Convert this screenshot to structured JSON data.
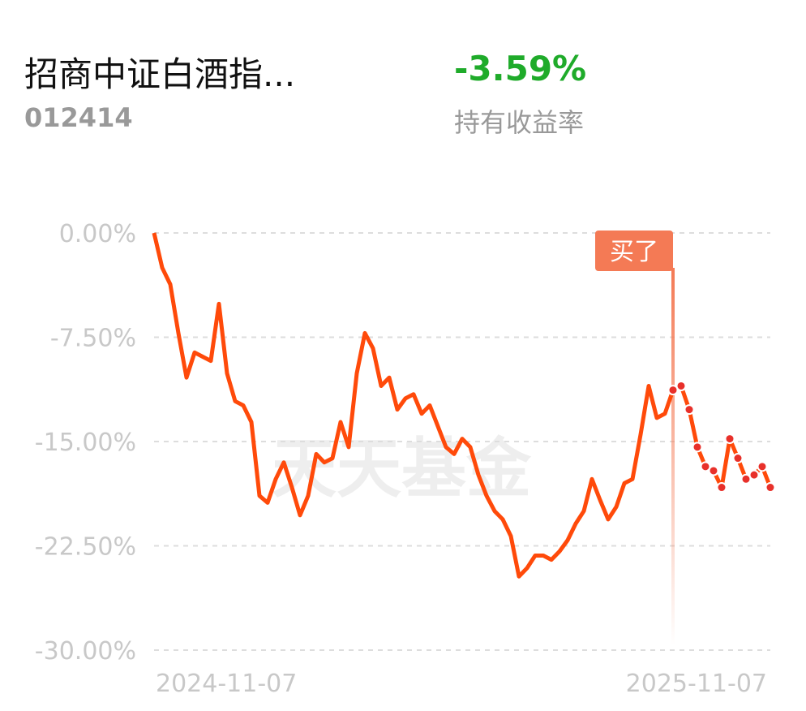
{
  "header": {
    "fund_name": "招商中证白酒指...",
    "code": "012414",
    "return_value": "-3.59%",
    "return_label": "持有收益率"
  },
  "chart_data": {
    "type": "line",
    "watermark": "天天基金",
    "annotation": "买了",
    "buy_index": 64,
    "color": "#ff4a0a",
    "marker_color": "#e8302a",
    "grid": true,
    "categories": [
      "2024-11-07",
      null,
      null,
      null,
      null,
      null,
      null,
      null,
      null,
      null,
      null,
      null,
      null,
      null,
      null,
      null,
      null,
      null,
      null,
      null,
      null,
      null,
      null,
      null,
      null,
      null,
      null,
      null,
      null,
      null,
      null,
      null,
      null,
      null,
      null,
      null,
      null,
      null,
      null,
      null,
      null,
      null,
      null,
      null,
      null,
      null,
      null,
      null,
      null,
      null,
      null,
      null,
      null,
      null,
      null,
      null,
      null,
      null,
      null,
      null,
      null,
      null,
      null,
      null,
      null,
      null,
      null,
      null,
      null,
      null,
      null,
      null,
      null,
      null,
      null,
      null,
      "2025-11-07"
    ],
    "values": [
      0,
      -2.5,
      -3.7,
      -7.2,
      -10.4,
      -8.6,
      -8.9,
      -9.2,
      -5.1,
      -10.1,
      -12.1,
      -12.4,
      -13.6,
      -18.9,
      -19.4,
      -17.7,
      -16.5,
      -18.3,
      -20.3,
      -18.9,
      -15.9,
      -16.5,
      -16.2,
      -13.6,
      -15.4,
      -10.1,
      -7.2,
      -8.3,
      -11.0,
      -10.4,
      -12.7,
      -11.9,
      -11.6,
      -13.0,
      -12.4,
      -13.9,
      -15.4,
      -15.9,
      -14.8,
      -15.4,
      -17.4,
      -18.9,
      -20.0,
      -20.6,
      -21.8,
      -24.7,
      -24.1,
      -23.2,
      -23.2,
      -23.5,
      -22.9,
      -22.1,
      -20.9,
      -20.0,
      -17.7,
      -19.2,
      -20.6,
      -19.7,
      -18.0,
      -17.7,
      -14.5,
      -11.0,
      -13.3,
      -13.0,
      -11.3,
      -11.0,
      -12.7,
      -15.4,
      -16.8,
      -17.1,
      -18.3,
      -14.8,
      -16.2,
      -17.7,
      -17.4,
      -16.8,
      -18.3
    ],
    "ylim": [
      -30,
      0
    ],
    "yticks": [
      {
        "value": 0,
        "label": "0.00%"
      },
      {
        "value": -7.5,
        "label": "-7.50%"
      },
      {
        "value": -15,
        "label": "-15.00%"
      },
      {
        "value": -22.5,
        "label": "-22.50%"
      },
      {
        "value": -30,
        "label": "-30.00%"
      }
    ]
  }
}
